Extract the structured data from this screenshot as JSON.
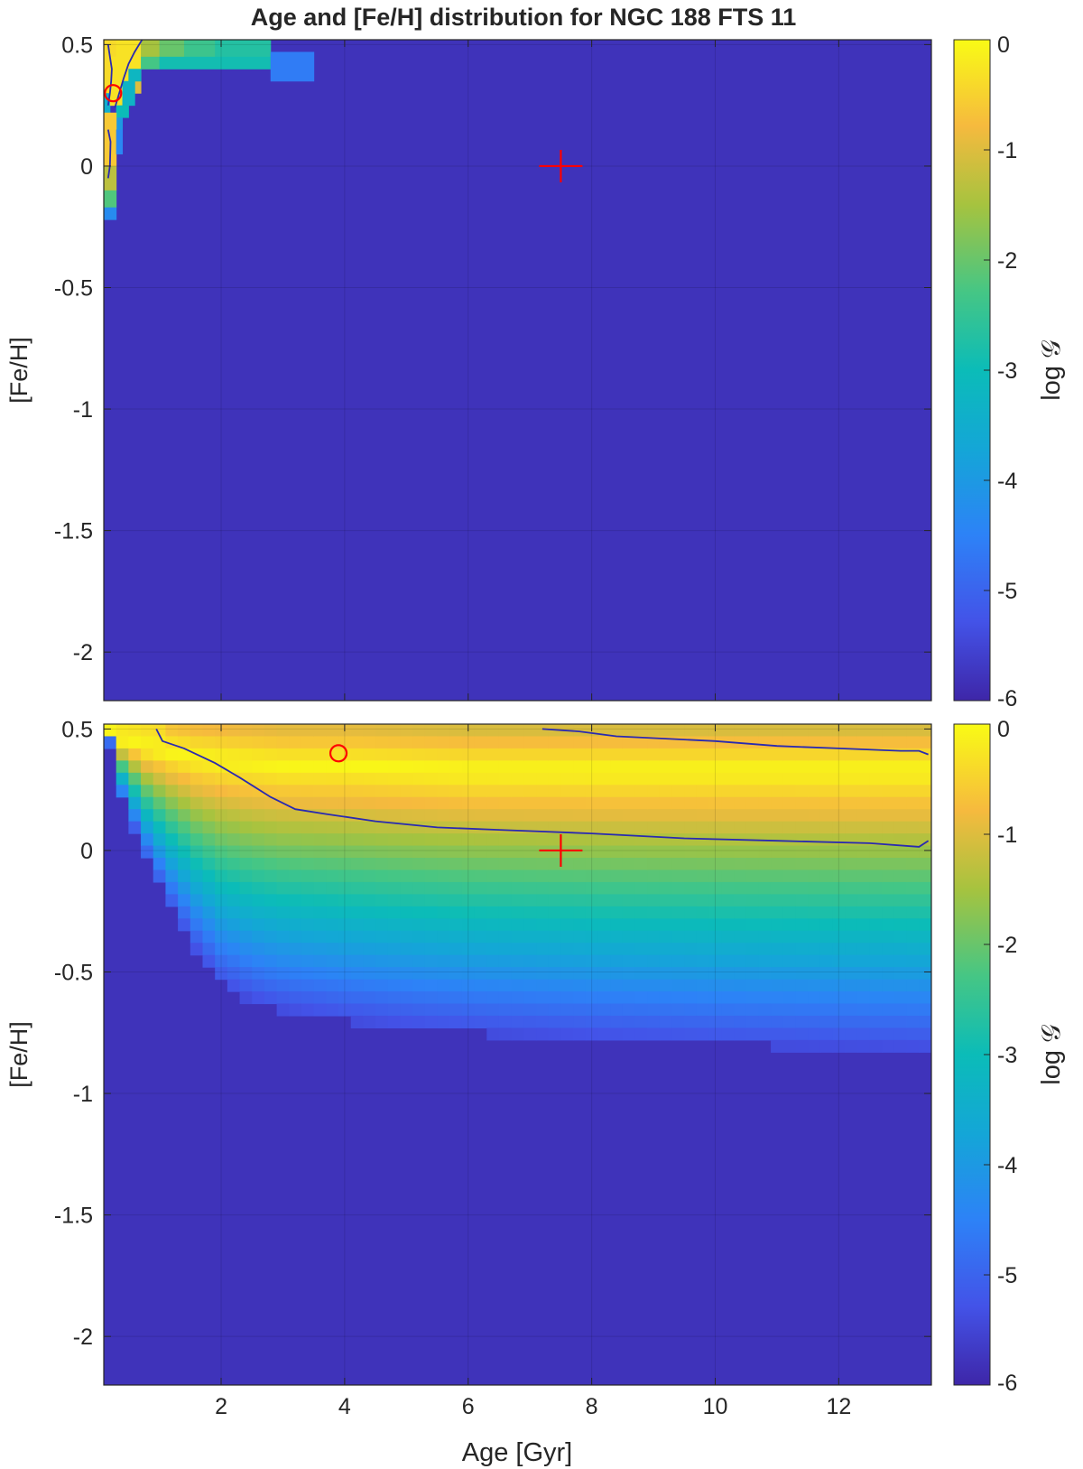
{
  "figure": {
    "title": "Age and [Fe/H] distribution for NGC 188 FTS 11"
  },
  "chart_data": [
    {
      "type": "heatmap",
      "panel": "top",
      "title": "Age and [Fe/H] distribution for NGC 188 FTS 11",
      "xlabel": "",
      "ylabel": "[Fe/H]",
      "xlim": [
        0.1,
        13.5
      ],
      "ylim": [
        -2.2,
        0.52
      ],
      "xticks": [
        2,
        4,
        6,
        8,
        10,
        12
      ],
      "xtick_labels": [
        "",
        "",
        "",
        "",
        "",
        ""
      ],
      "yticks": [
        0.5,
        0,
        -0.5,
        -1,
        -1.5,
        -2
      ],
      "ytick_labels": [
        "0.5",
        "0",
        "-0.5",
        "-1",
        "-1.5",
        "-2"
      ],
      "grid": true,
      "colorbar": {
        "label": "log 𝒢",
        "range": [
          -6,
          0
        ],
        "ticks": [
          0,
          -1,
          -2,
          -3,
          -4,
          -5,
          -6
        ],
        "tick_labels": [
          "0",
          "-1",
          "-2",
          "-3",
          "-4",
          "-5",
          "-6"
        ],
        "colormap": "parula"
      },
      "grid_cells": {
        "age_step": 0.2,
        "feh_step": 0.05,
        "background_value": -5.8,
        "cells": [
          {
            "age": [
              0.1,
              0.3
            ],
            "feh": [
              0.3,
              0.52
            ],
            "value": -0.4
          },
          {
            "age": [
              0.1,
              0.2
            ],
            "feh": [
              0.22,
              0.3
            ],
            "value": -3.5
          },
          {
            "age": [
              0.2,
              0.5
            ],
            "feh": [
              0.25,
              0.45
            ],
            "value": -0.3
          },
          {
            "age": [
              0.3,
              0.7
            ],
            "feh": [
              0.4,
              0.52
            ],
            "value": -0.3
          },
          {
            "age": [
              0.5,
              0.7
            ],
            "feh": [
              0.3,
              0.4
            ],
            "value": -1.0
          },
          {
            "age": [
              0.7,
              1.0
            ],
            "feh": [
              0.45,
              0.52
            ],
            "value": -1.5
          },
          {
            "age": [
              1.0,
              1.4
            ],
            "feh": [
              0.45,
              0.52
            ],
            "value": -2.0
          },
          {
            "age": [
              1.4,
              1.9
            ],
            "feh": [
              0.45,
              0.52
            ],
            "value": -2.4
          },
          {
            "age": [
              1.9,
              2.8
            ],
            "feh": [
              0.45,
              0.52
            ],
            "value": -2.7
          },
          {
            "age": [
              0.7,
              1.0
            ],
            "feh": [
              0.4,
              0.45
            ],
            "value": -2.3
          },
          {
            "age": [
              1.0,
              2.8
            ],
            "feh": [
              0.4,
              0.45
            ],
            "value": -2.9
          },
          {
            "age": [
              2.8,
              3.5
            ],
            "feh": [
              0.35,
              0.47
            ],
            "value": -4.6
          },
          {
            "age": [
              0.5,
              0.7
            ],
            "feh": [
              0.35,
              0.4
            ],
            "value": -3.2
          },
          {
            "age": [
              0.4,
              0.6
            ],
            "feh": [
              0.25,
              0.35
            ],
            "value": -3.3
          },
          {
            "age": [
              0.3,
              0.5
            ],
            "feh": [
              0.2,
              0.25
            ],
            "value": -3.0
          },
          {
            "age": [
              0.3,
              0.4
            ],
            "feh": [
              0.15,
              0.2
            ],
            "value": -4.0
          },
          {
            "age": [
              0.1,
              0.3
            ],
            "feh": [
              0.0,
              0.22
            ],
            "value": -0.6
          },
          {
            "age": [
              0.3,
              0.4
            ],
            "feh": [
              0.05,
              0.15
            ],
            "value": -4.4
          },
          {
            "age": [
              0.1,
              0.3
            ],
            "feh": [
              -0.1,
              0.0
            ],
            "value": -1.3
          },
          {
            "age": [
              0.1,
              0.3
            ],
            "feh": [
              -0.17,
              -0.1
            ],
            "value": -2.2
          },
          {
            "age": [
              0.1,
              0.3
            ],
            "feh": [
              -0.22,
              -0.17
            ],
            "value": -4.3
          }
        ]
      },
      "contours": [
        {
          "age": [
            0.17,
            0.2,
            0.23,
            0.22,
            0.2,
            0.17
          ],
          "feh": [
            0.5,
            0.45,
            0.4,
            0.35,
            0.3,
            0.25
          ]
        },
        {
          "age": [
            0.72,
            0.6,
            0.5,
            0.42,
            0.35,
            0.28
          ],
          "feh": [
            0.52,
            0.47,
            0.42,
            0.36,
            0.3,
            0.24
          ]
        },
        {
          "age": [
            0.17,
            0.21,
            0.2,
            0.17
          ],
          "feh": [
            0.15,
            0.1,
            0.0,
            -0.05
          ]
        }
      ],
      "markers": [
        {
          "kind": "circle",
          "age": 0.25,
          "feh": 0.3,
          "color": "#ff0000"
        },
        {
          "kind": "plus",
          "age": 7.5,
          "feh": 0.0,
          "color": "#ff0000"
        }
      ]
    },
    {
      "type": "heatmap",
      "panel": "bottom",
      "title": "",
      "xlabel": "Age [Gyr]",
      "ylabel": "[Fe/H]",
      "xlim": [
        0.1,
        13.5
      ],
      "ylim": [
        -2.2,
        0.52
      ],
      "xticks": [
        2,
        4,
        6,
        8,
        10,
        12
      ],
      "xtick_labels": [
        "2",
        "4",
        "6",
        "8",
        "10",
        "12"
      ],
      "yticks": [
        0.5,
        0,
        -0.5,
        -1,
        -1.5,
        -2
      ],
      "ytick_labels": [
        "0.5",
        "0",
        "-0.5",
        "-1",
        "-1.5",
        "-2"
      ],
      "grid": true,
      "colorbar": {
        "label": "log 𝒢",
        "range": [
          -6,
          0
        ],
        "ticks": [
          0,
          -1,
          -2,
          -3,
          -4,
          -5,
          -6
        ],
        "tick_labels": [
          "0",
          "-1",
          "-2",
          "-3",
          "-4",
          "-5",
          "-6"
        ],
        "colormap": "parula"
      },
      "grid_cells": {
        "age_step": 0.2,
        "feh_step": 0.05,
        "background_value": -5.8,
        "peak_feh": 0.35,
        "peak_value": -0.05,
        "upper_falloff_per_dex": 6.0,
        "ridge": {
          "age": [
            0.15,
            0.4,
            0.8,
            1.2,
            1.6,
            2.0,
            2.5,
            3.0,
            4.0,
            5.0,
            6.0,
            8.0,
            10.0,
            13.5
          ],
          "lower_edge_feh": [
            0.5,
            0.2,
            -0.05,
            -0.25,
            -0.42,
            -0.55,
            -0.62,
            -0.66,
            -0.7,
            -0.73,
            -0.75,
            -0.78,
            -0.8,
            -0.82
          ],
          "peak_feh": [
            0.5,
            0.45,
            0.42,
            0.4,
            0.38,
            0.37,
            0.36,
            0.35,
            0.35,
            0.34,
            0.33,
            0.33,
            0.33,
            0.33
          ]
        }
      },
      "contours": [
        {
          "age": [
            0.95,
            1.05,
            1.4,
            1.9,
            2.3,
            2.8,
            3.2,
            3.7,
            4.5,
            5.5,
            6.5,
            8.0,
            9.5,
            11.0,
            12.5,
            13.3,
            13.45
          ],
          "feh": [
            0.5,
            0.45,
            0.42,
            0.36,
            0.3,
            0.22,
            0.17,
            0.15,
            0.12,
            0.095,
            0.085,
            0.07,
            0.05,
            0.04,
            0.03,
            0.015,
            0.04
          ]
        },
        {
          "age": [
            7.2,
            7.8,
            8.4,
            9.2,
            10.0,
            11.0,
            12.0,
            13.0,
            13.3,
            13.45
          ],
          "feh": [
            0.5,
            0.49,
            0.47,
            0.46,
            0.45,
            0.43,
            0.42,
            0.41,
            0.41,
            0.395
          ]
        }
      ],
      "markers": [
        {
          "kind": "circle",
          "age": 3.9,
          "feh": 0.4,
          "color": "#ff0000"
        },
        {
          "kind": "plus",
          "age": 7.5,
          "feh": 0.0,
          "color": "#ff0000"
        }
      ]
    }
  ]
}
